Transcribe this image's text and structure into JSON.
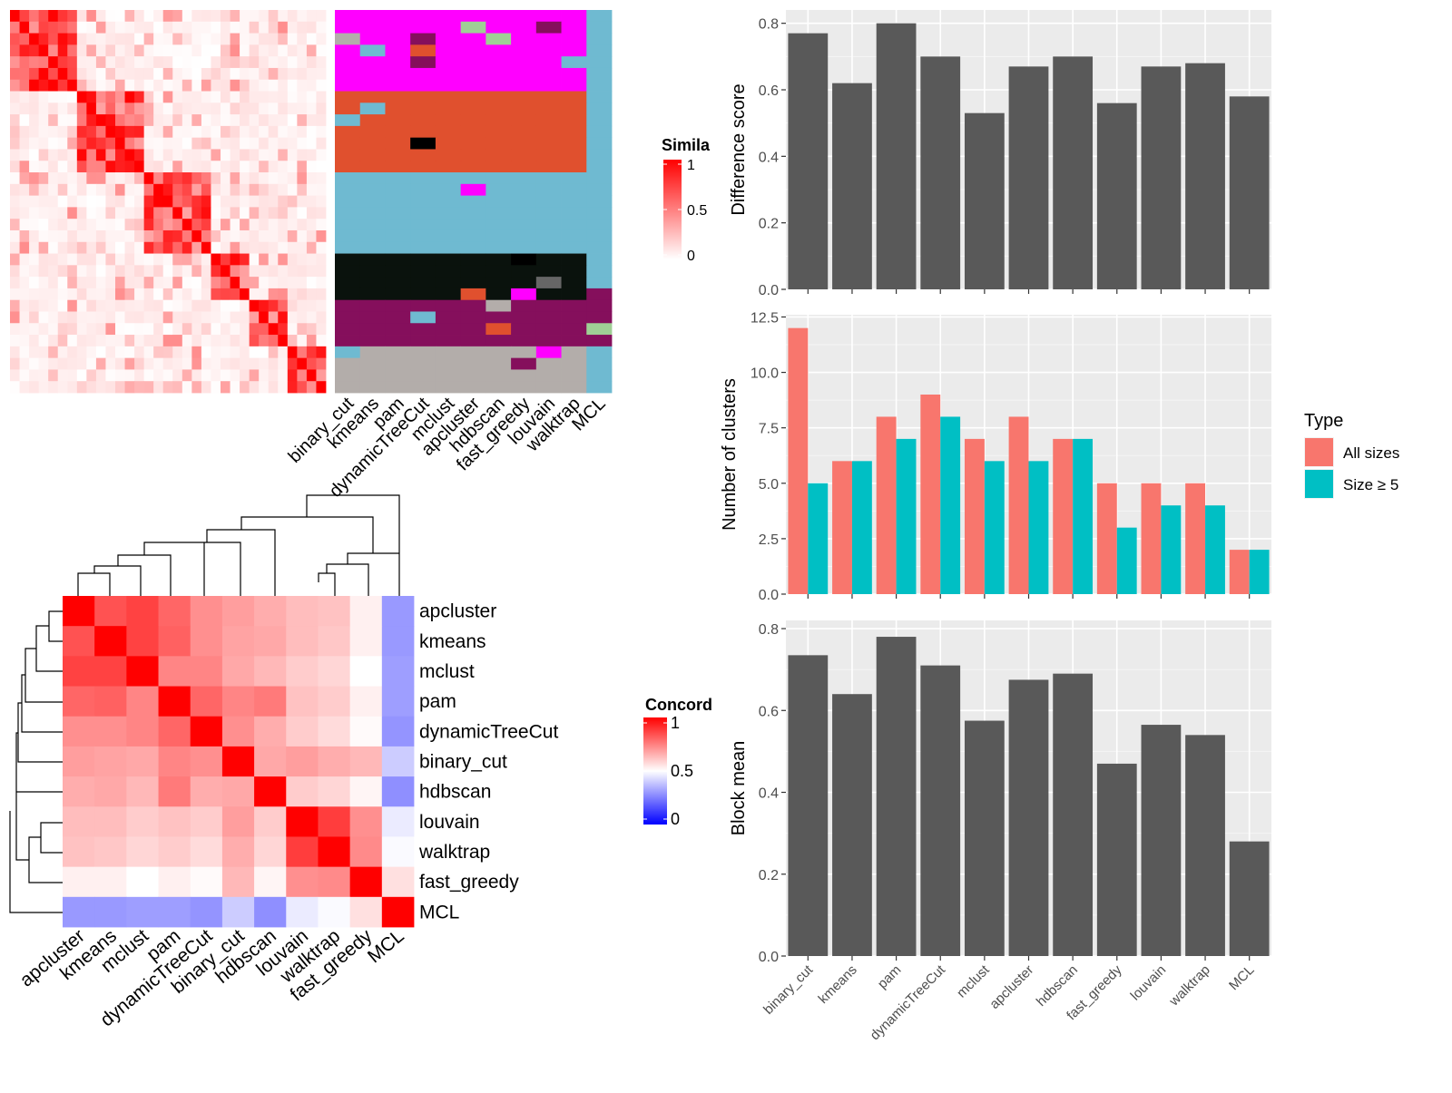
{
  "chart_data": [
    {
      "type": "heatmap",
      "title": "",
      "legend_title": "Similarity",
      "legend_title_visible": "Simila",
      "legend_ticks": [
        "1",
        "0.5",
        "0"
      ],
      "legend_colors": [
        "#FFFFFF",
        "#FF0000"
      ],
      "matrix_description_blocks": [
        {
          "start": 0,
          "end": 7
        },
        {
          "start": 7,
          "end": 14
        },
        {
          "start": 14,
          "end": 21
        },
        {
          "start": 21,
          "end": 25
        },
        {
          "start": 25,
          "end": 29
        },
        {
          "start": 29,
          "end": 33
        }
      ]
    },
    {
      "type": "heatmap",
      "title": "",
      "column_labels": [
        "binary_cut",
        "kmeans",
        "pam",
        "dynamicTreeCut",
        "mclust",
        "apcluster",
        "hdbscan",
        "fast_greedy",
        "louvain",
        "walktrap",
        "MCL"
      ],
      "cluster_colors": [
        "#FF00FF",
        "#E0502E",
        "#6FBAD1",
        "#0A120D",
        "#850F5C",
        "#B3ADAA",
        "#9FCF95",
        "#666666",
        "#000000"
      ]
    },
    {
      "type": "heatmap",
      "title": "",
      "legend_title": "Concordance",
      "legend_title_visible": "Concord",
      "legend_ticks": [
        "1",
        "0.5",
        "0"
      ],
      "legend_colors": [
        "#0000FF",
        "#FFFFFF",
        "#FF0000"
      ],
      "labels": [
        "apcluster",
        "kmeans",
        "mclust",
        "pam",
        "dynamicTreeCut",
        "binary_cut",
        "hdbscan",
        "louvain",
        "walktrap",
        "fast_greedy",
        "MCL"
      ],
      "matrix": [
        [
          1.0,
          0.84,
          0.87,
          0.8,
          0.72,
          0.69,
          0.66,
          0.63,
          0.62,
          0.53,
          0.3
        ],
        [
          0.84,
          1.0,
          0.87,
          0.81,
          0.72,
          0.68,
          0.67,
          0.63,
          0.61,
          0.53,
          0.3
        ],
        [
          0.87,
          0.87,
          1.0,
          0.74,
          0.74,
          0.67,
          0.64,
          0.6,
          0.58,
          0.5,
          0.31
        ],
        [
          0.8,
          0.81,
          0.74,
          1.0,
          0.8,
          0.74,
          0.76,
          0.62,
          0.6,
          0.53,
          0.31
        ],
        [
          0.72,
          0.72,
          0.74,
          0.8,
          1.0,
          0.72,
          0.66,
          0.6,
          0.57,
          0.51,
          0.29
        ],
        [
          0.69,
          0.68,
          0.67,
          0.74,
          0.72,
          1.0,
          0.67,
          0.69,
          0.66,
          0.64,
          0.4
        ],
        [
          0.66,
          0.67,
          0.64,
          0.76,
          0.66,
          0.67,
          1.0,
          0.6,
          0.58,
          0.52,
          0.28
        ],
        [
          0.63,
          0.63,
          0.6,
          0.62,
          0.6,
          0.69,
          0.6,
          1.0,
          0.88,
          0.72,
          0.46
        ],
        [
          0.62,
          0.61,
          0.58,
          0.6,
          0.57,
          0.66,
          0.58,
          0.88,
          1.0,
          0.73,
          0.49
        ],
        [
          0.53,
          0.53,
          0.5,
          0.53,
          0.51,
          0.64,
          0.52,
          0.72,
          0.73,
          1.0,
          0.56
        ],
        [
          0.3,
          0.3,
          0.31,
          0.31,
          0.29,
          0.4,
          0.28,
          0.46,
          0.49,
          0.56,
          1.0
        ]
      ]
    },
    {
      "type": "bar",
      "title": "",
      "xlabel": "",
      "ylabel": "Difference score",
      "categories": [
        "binary_cut",
        "kmeans",
        "pam",
        "dynamicTreeCut",
        "mclust",
        "apcluster",
        "hdbscan",
        "fast_greedy",
        "louvain",
        "walktrap",
        "MCL"
      ],
      "values": [
        0.77,
        0.62,
        0.8,
        0.7,
        0.53,
        0.67,
        0.7,
        0.56,
        0.67,
        0.68,
        0.58
      ],
      "ylim": [
        0,
        0.84
      ],
      "yticks": [
        "0.0",
        "0.2",
        "0.4",
        "0.6",
        "0.8"
      ],
      "bar_color": "#595959"
    },
    {
      "type": "bar",
      "title": "",
      "xlabel": "",
      "ylabel": "Number of clusters",
      "categories": [
        "binary_cut",
        "kmeans",
        "pam",
        "dynamicTreeCut",
        "mclust",
        "apcluster",
        "hdbscan",
        "fast_greedy",
        "louvain",
        "walktrap",
        "MCL"
      ],
      "series": [
        {
          "name": "All sizes",
          "values": [
            12,
            6,
            8,
            9,
            7,
            8,
            7,
            5,
            5,
            5,
            2
          ],
          "color": "#F8766D"
        },
        {
          "name": "Size ≥ 5",
          "values": [
            5,
            6,
            7,
            8,
            6,
            6,
            7,
            3,
            4,
            4,
            2
          ],
          "color": "#00BFC4"
        }
      ],
      "ylim": [
        0,
        12.6
      ],
      "yticks": [
        "0.0",
        "2.5",
        "5.0",
        "7.5",
        "10.0",
        "12.5"
      ],
      "legend_title": "Type",
      "legend_position": "right"
    },
    {
      "type": "bar",
      "title": "",
      "xlabel": "",
      "ylabel": "Block mean",
      "categories": [
        "binary_cut",
        "kmeans",
        "pam",
        "dynamicTreeCut",
        "mclust",
        "apcluster",
        "hdbscan",
        "fast_greedy",
        "louvain",
        "walktrap",
        "MCL"
      ],
      "values": [
        0.735,
        0.64,
        0.78,
        0.71,
        0.575,
        0.675,
        0.69,
        0.47,
        0.565,
        0.54,
        0.28
      ],
      "ylim": [
        0,
        0.82
      ],
      "yticks": [
        "0.0",
        "0.2",
        "0.4",
        "0.6",
        "0.8"
      ],
      "bar_color": "#595959"
    }
  ]
}
